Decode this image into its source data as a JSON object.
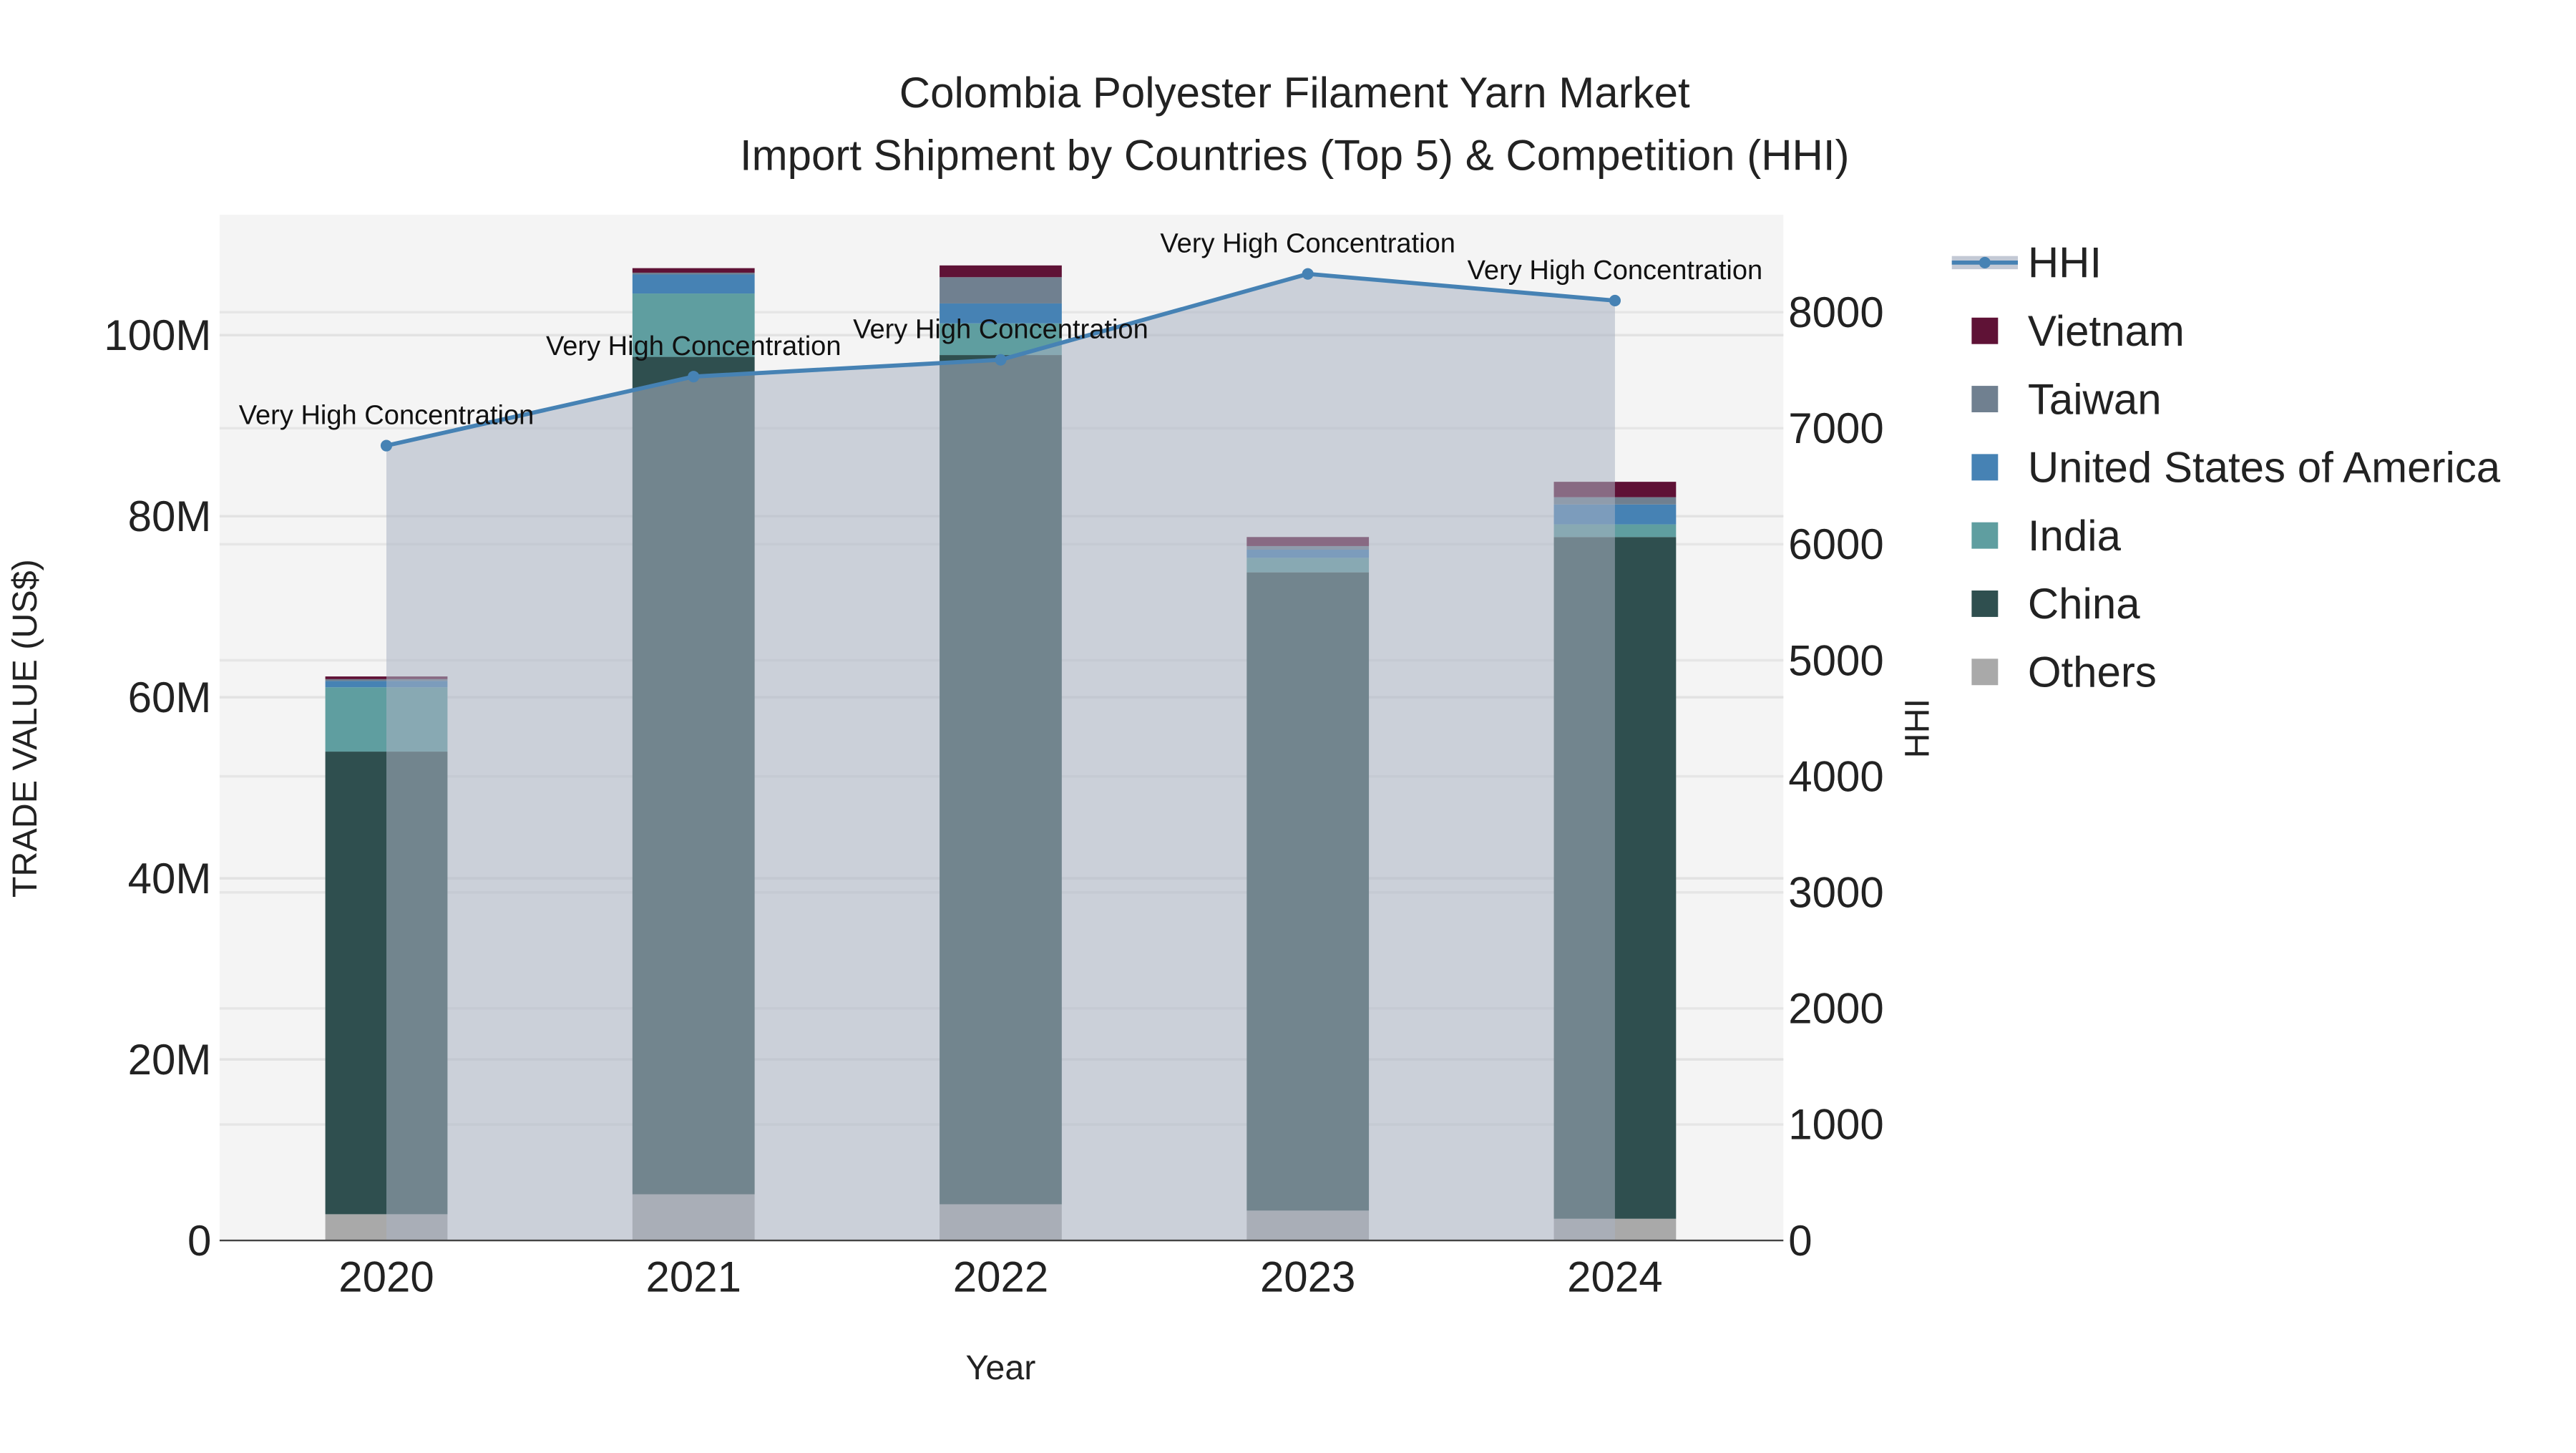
{
  "chart_data": {
    "type": "bar",
    "title": "Colombia Polyester Filament Yarn Market",
    "subtitle": "Import Shipment by Countries (Top 5) & Competition (HHI)",
    "xlabel": "Year",
    "ylabel": "TRADE VALUE (US$)",
    "y2label": "HHI",
    "categories": [
      "2020",
      "2021",
      "2022",
      "2023",
      "2024"
    ],
    "ylim": [
      0,
      113300000
    ],
    "y2lim": [
      0,
      8840
    ],
    "yticks": [
      {
        "v": 0,
        "label": "0"
      },
      {
        "v": 20000000,
        "label": "20M"
      },
      {
        "v": 40000000,
        "label": "40M"
      },
      {
        "v": 60000000,
        "label": "60M"
      },
      {
        "v": 80000000,
        "label": "80M"
      },
      {
        "v": 100000000,
        "label": "100M"
      }
    ],
    "y2ticks": [
      {
        "v": 0,
        "label": "0"
      },
      {
        "v": 1000,
        "label": "1000"
      },
      {
        "v": 2000,
        "label": "2000"
      },
      {
        "v": 3000,
        "label": "3000"
      },
      {
        "v": 4000,
        "label": "4000"
      },
      {
        "v": 5000,
        "label": "5000"
      },
      {
        "v": 6000,
        "label": "6000"
      },
      {
        "v": 7000,
        "label": "7000"
      },
      {
        "v": 8000,
        "label": "8000"
      }
    ],
    "stacked": true,
    "series": [
      {
        "name": "Others",
        "color": "#a9a9a9",
        "values": [
          2900000,
          5100000,
          4000000,
          3300000,
          2400000
        ]
      },
      {
        "name": "China",
        "color": "#2f4f4f",
        "values": [
          51100000,
          92500000,
          93800000,
          70500000,
          75300000
        ]
      },
      {
        "name": "India",
        "color": "#5f9ea0",
        "values": [
          7100000,
          7000000,
          3500000,
          1600000,
          1400000
        ]
      },
      {
        "name": "United States of America",
        "color": "#4682b4",
        "values": [
          700000,
          2100000,
          2200000,
          900000,
          2200000
        ]
      },
      {
        "name": "Taiwan",
        "color": "#708090",
        "values": [
          200000,
          200000,
          2900000,
          400000,
          800000
        ]
      },
      {
        "name": "Vietnam",
        "color": "#5f1236",
        "values": [
          300000,
          500000,
          1300000,
          1000000,
          1700000
        ]
      }
    ],
    "line": {
      "name": "HHI",
      "color": "#4682b4",
      "axis": "y2",
      "values": [
        6850,
        7445,
        7590,
        8330,
        8100
      ],
      "annotations": [
        "Very High Concentration",
        "Very High Concentration",
        "Very High Concentration",
        "Very High Concentration",
        "Very High Concentration"
      ]
    },
    "legend": [
      "HHI",
      "Vietnam",
      "Taiwan",
      "United States of America",
      "India",
      "China",
      "Others"
    ],
    "legend_position": "right",
    "grid": true
  }
}
